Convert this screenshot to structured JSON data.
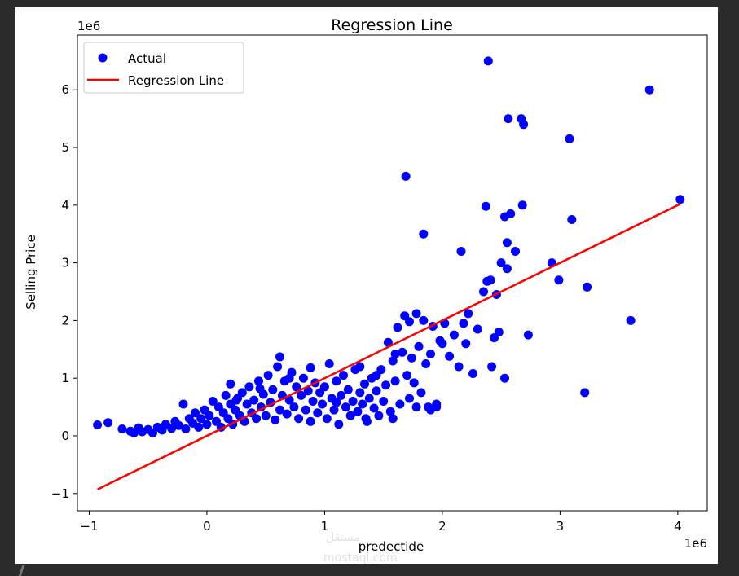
{
  "chart_data": {
    "type": "scatter",
    "title": "Regression Line",
    "xlabel": "predectide",
    "ylabel": "Selling Price",
    "x_offset_label": "1e6",
    "y_offset_label": "1e6",
    "xlim": [
      -1.1,
      4.25
    ],
    "ylim": [
      -1.3,
      6.95
    ],
    "xticks": [
      -1,
      0,
      1,
      2,
      3,
      4
    ],
    "xtick_labels": [
      "−1",
      "0",
      "1",
      "2",
      "3",
      "4"
    ],
    "yticks": [
      -1,
      0,
      1,
      2,
      3,
      4,
      5,
      6
    ],
    "ytick_labels": [
      "−1",
      "0",
      "1",
      "2",
      "3",
      "4",
      "5",
      "6"
    ],
    "legend_position": "upper-left",
    "grid": false,
    "series": [
      {
        "name": "Actual",
        "kind": "scatter",
        "color": "#0000ff",
        "points": [
          [
            -0.93,
            0.19
          ],
          [
            -0.84,
            0.23
          ],
          [
            -0.72,
            0.12
          ],
          [
            -0.65,
            0.08
          ],
          [
            -0.62,
            0.05
          ],
          [
            -0.58,
            0.14
          ],
          [
            -0.55,
            0.07
          ],
          [
            -0.5,
            0.11
          ],
          [
            -0.46,
            0.05
          ],
          [
            -0.42,
            0.15
          ],
          [
            -0.38,
            0.1
          ],
          [
            -0.35,
            0.2
          ],
          [
            -0.3,
            0.13
          ],
          [
            -0.27,
            0.25
          ],
          [
            -0.24,
            0.18
          ],
          [
            -0.2,
            0.55
          ],
          [
            -0.18,
            0.12
          ],
          [
            -0.15,
            0.3
          ],
          [
            -0.12,
            0.22
          ],
          [
            -0.1,
            0.4
          ],
          [
            -0.07,
            0.15
          ],
          [
            -0.05,
            0.3
          ],
          [
            -0.02,
            0.45
          ],
          [
            0.0,
            0.2
          ],
          [
            0.02,
            0.35
          ],
          [
            0.05,
            0.6
          ],
          [
            0.08,
            0.25
          ],
          [
            0.1,
            0.5
          ],
          [
            0.12,
            0.15
          ],
          [
            0.14,
            0.4
          ],
          [
            0.16,
            0.7
          ],
          [
            0.18,
            0.3
          ],
          [
            0.2,
            0.55
          ],
          [
            0.2,
            0.9
          ],
          [
            0.22,
            0.2
          ],
          [
            0.24,
            0.45
          ],
          [
            0.26,
            0.65
          ],
          [
            0.28,
            0.35
          ],
          [
            0.3,
            0.75
          ],
          [
            0.32,
            0.25
          ],
          [
            0.34,
            0.55
          ],
          [
            0.36,
            0.85
          ],
          [
            0.38,
            0.4
          ],
          [
            0.4,
            0.62
          ],
          [
            0.42,
            0.3
          ],
          [
            0.44,
            0.95
          ],
          [
            0.46,
            0.5
          ],
          [
            0.48,
            0.72
          ],
          [
            0.5,
            0.35
          ],
          [
            0.52,
            1.05
          ],
          [
            0.54,
            0.58
          ],
          [
            0.56,
            0.8
          ],
          [
            0.58,
            0.28
          ],
          [
            0.6,
            1.2
          ],
          [
            0.62,
            0.45
          ],
          [
            0.62,
            1.37
          ],
          [
            0.64,
            0.7
          ],
          [
            0.66,
            0.95
          ],
          [
            0.68,
            0.38
          ],
          [
            0.7,
            0.62
          ],
          [
            0.72,
            1.1
          ],
          [
            0.74,
            0.5
          ],
          [
            0.76,
            0.85
          ],
          [
            0.78,
            0.3
          ],
          [
            0.8,
            0.7
          ],
          [
            0.82,
            1.0
          ],
          [
            0.84,
            0.45
          ],
          [
            0.86,
            0.78
          ],
          [
            0.88,
            0.25
          ],
          [
            0.9,
            0.6
          ],
          [
            0.92,
            0.92
          ],
          [
            0.94,
            0.4
          ],
          [
            0.96,
            0.75
          ],
          [
            0.98,
            0.55
          ],
          [
            1.0,
            0.85
          ],
          [
            1.02,
            0.3
          ],
          [
            1.04,
            1.25
          ],
          [
            1.06,
            0.65
          ],
          [
            1.08,
            0.45
          ],
          [
            1.1,
            0.95
          ],
          [
            1.12,
            0.2
          ],
          [
            1.14,
            0.7
          ],
          [
            1.16,
            1.05
          ],
          [
            1.18,
            0.5
          ],
          [
            1.2,
            0.8
          ],
          [
            1.22,
            0.35
          ],
          [
            1.24,
            0.6
          ],
          [
            1.26,
            1.15
          ],
          [
            1.28,
            0.42
          ],
          [
            1.3,
            0.75
          ],
          [
            1.32,
            0.55
          ],
          [
            1.34,
            0.9
          ],
          [
            1.36,
            0.25
          ],
          [
            1.38,
            0.65
          ],
          [
            1.4,
            1.0
          ],
          [
            1.42,
            0.48
          ],
          [
            1.44,
            0.78
          ],
          [
            1.46,
            0.35
          ],
          [
            1.48,
            1.15
          ],
          [
            1.5,
            0.6
          ],
          [
            1.52,
            0.88
          ],
          [
            1.54,
            1.62
          ],
          [
            1.56,
            0.42
          ],
          [
            1.58,
            1.3
          ],
          [
            1.6,
            0.95
          ],
          [
            1.62,
            1.88
          ],
          [
            1.64,
            0.55
          ],
          [
            1.66,
            1.45
          ],
          [
            1.68,
            2.08
          ],
          [
            1.7,
            1.05
          ],
          [
            1.72,
            0.65
          ],
          [
            1.74,
            1.35
          ],
          [
            1.76,
            0.92
          ],
          [
            1.78,
            2.12
          ],
          [
            1.8,
            1.55
          ],
          [
            1.82,
            0.75
          ],
          [
            1.84,
            2.0
          ],
          [
            1.86,
            1.25
          ],
          [
            1.88,
            0.5
          ],
          [
            1.9,
            1.42
          ],
          [
            1.92,
            1.9
          ],
          [
            1.95,
            0.55
          ],
          [
            1.98,
            1.65
          ],
          [
            2.02,
            1.95
          ],
          [
            2.06,
            1.38
          ],
          [
            2.1,
            1.75
          ],
          [
            2.14,
            1.2
          ],
          [
            2.18,
            1.95
          ],
          [
            2.22,
            2.12
          ],
          [
            2.26,
            1.08
          ],
          [
            2.3,
            1.85
          ],
          [
            2.35,
            2.5
          ],
          [
            2.38,
            2.68
          ],
          [
            2.42,
            1.2
          ],
          [
            2.44,
            1.7
          ],
          [
            2.46,
            2.45
          ],
          [
            2.5,
            3.0
          ],
          [
            2.53,
            1.0
          ],
          [
            2.55,
            2.9
          ],
          [
            2.55,
            3.35
          ],
          [
            2.58,
            3.85
          ],
          [
            2.62,
            3.2
          ],
          [
            2.68,
            4.0
          ],
          [
            2.73,
            1.75
          ],
          [
            2.93,
            3.0
          ],
          [
            2.99,
            2.7
          ],
          [
            3.08,
            5.15
          ],
          [
            3.1,
            3.75
          ],
          [
            3.21,
            0.75
          ],
          [
            3.23,
            2.58
          ],
          [
            3.6,
            2.0
          ],
          [
            3.76,
            6.0
          ],
          [
            4.02,
            4.1
          ],
          [
            2.39,
            6.5
          ],
          [
            2.56,
            5.5
          ],
          [
            2.67,
            5.5
          ],
          [
            2.69,
            5.4
          ],
          [
            1.69,
            4.5
          ],
          [
            2.37,
            3.98
          ],
          [
            2.53,
            3.8
          ],
          [
            1.84,
            3.5
          ],
          [
            2.16,
            3.2
          ],
          [
            1.72,
            1.98
          ],
          [
            1.6,
            1.42
          ],
          [
            1.44,
            1.05
          ],
          [
            1.3,
            1.2
          ],
          [
            0.88,
            1.18
          ],
          [
            0.7,
            1.0
          ],
          [
            0.45,
            0.82
          ],
          [
            0.25,
            0.62
          ],
          [
            1.1,
            0.58
          ],
          [
            1.35,
            0.3
          ],
          [
            1.58,
            0.3
          ],
          [
            1.78,
            0.5
          ],
          [
            1.9,
            0.45
          ],
          [
            1.95,
            0.5
          ],
          [
            2.0,
            1.6
          ],
          [
            2.2,
            1.6
          ],
          [
            2.48,
            1.8
          ],
          [
            2.41,
            2.7
          ]
        ]
      },
      {
        "name": "Regression Line",
        "kind": "line",
        "color": "#ff0000",
        "points": [
          [
            -0.93,
            -0.93
          ],
          [
            4.02,
            4.02
          ]
        ]
      }
    ]
  },
  "watermark": {
    "text": "mostaql.com",
    "mark": "مستقل"
  }
}
